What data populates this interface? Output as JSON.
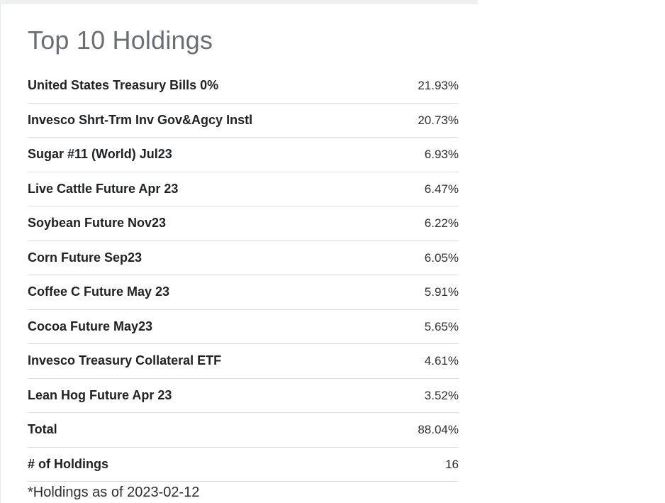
{
  "title": "Top 10 Holdings",
  "holdings": [
    {
      "name": "United States Treasury Bills 0%",
      "weight": "21.93%"
    },
    {
      "name": "Invesco Shrt-Trm Inv Gov&Agcy Instl",
      "weight": "20.73%"
    },
    {
      "name": "Sugar #11 (World) Jul23",
      "weight": "6.93%"
    },
    {
      "name": "Live Cattle Future Apr 23",
      "weight": "6.47%"
    },
    {
      "name": "Soybean Future Nov23",
      "weight": "6.22%"
    },
    {
      "name": "Corn Future Sep23",
      "weight": "6.05%"
    },
    {
      "name": "Coffee C Future May 23",
      "weight": "5.91%"
    },
    {
      "name": "Cocoa Future May23",
      "weight": "5.65%"
    },
    {
      "name": "Invesco Treasury Collateral ETF",
      "weight": "4.61%"
    },
    {
      "name": "Lean Hog Future Apr 23",
      "weight": "3.52%"
    }
  ],
  "total": {
    "label": "Total",
    "value": "88.04%"
  },
  "count": {
    "label": "# of Holdings",
    "value": "16"
  },
  "footnote": "*Holdings as of 2023-02-12"
}
